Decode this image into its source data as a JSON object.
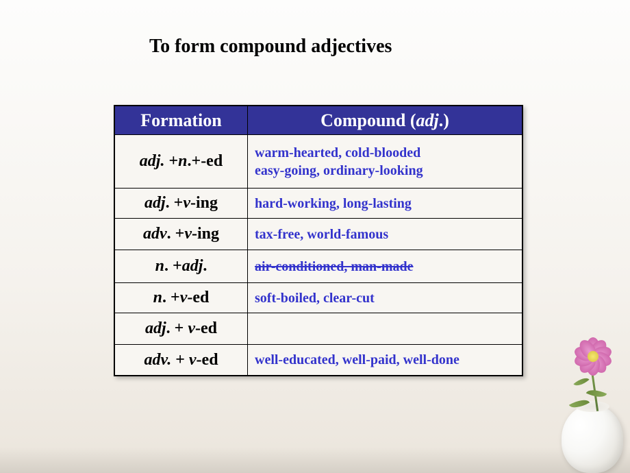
{
  "title": "To form compound adjectives",
  "table": {
    "header_bg": "#333398",
    "header_fg": "#ffffff",
    "border_color": "#000000",
    "compound_color": "#3333cc",
    "formation_color": "#000000",
    "headers": {
      "formation": "Formation",
      "compound_prefix": "Compound (",
      "compound_italic": "adj",
      "compound_suffix": ".)"
    },
    "rows": [
      {
        "formation_parts": [
          {
            "text": "adj.",
            "italic": true
          },
          {
            "text": " +",
            "italic": false
          },
          {
            "text": "n",
            "italic": true
          },
          {
            "text": ".+-ed",
            "italic": false
          }
        ],
        "compound_lines": [
          {
            "text": "warm-hearted, cold-blooded",
            "striked": false
          },
          {
            "text": "easy-going, ordinary-looking",
            "striked": false
          }
        ]
      },
      {
        "formation_parts": [
          {
            "text": "adj",
            "italic": true
          },
          {
            "text": ". +",
            "italic": false
          },
          {
            "text": "v",
            "italic": true
          },
          {
            "text": "-ing",
            "italic": false
          }
        ],
        "compound_lines": [
          {
            "text": "hard-working, long-lasting",
            "striked": false
          }
        ]
      },
      {
        "formation_parts": [
          {
            "text": "adv",
            "italic": true
          },
          {
            "text": ". +",
            "italic": false
          },
          {
            "text": "v",
            "italic": true
          },
          {
            "text": "-ing",
            "italic": false
          }
        ],
        "compound_lines": [
          {
            "text": "tax-free, world-famous",
            "striked": false
          }
        ]
      },
      {
        "formation_parts": [
          {
            "text": "n",
            "italic": true
          },
          {
            "text": ". +",
            "italic": false
          },
          {
            "text": "adj",
            "italic": true
          },
          {
            "text": ".",
            "italic": false
          }
        ],
        "compound_lines": [
          {
            "text": "air-conditioned, man-made",
            "striked": true
          }
        ]
      },
      {
        "formation_parts": [
          {
            "text": "n",
            "italic": true
          },
          {
            "text": ". +",
            "italic": false
          },
          {
            "text": "v",
            "italic": true
          },
          {
            "text": "-ed",
            "italic": false
          }
        ],
        "compound_lines": [
          {
            "text": "soft-boiled, clear-cut",
            "striked": false
          }
        ]
      },
      {
        "formation_parts": [
          {
            "text": "adj",
            "italic": true
          },
          {
            "text": ". + ",
            "italic": false
          },
          {
            "text": "v",
            "italic": true
          },
          {
            "text": "-ed",
            "italic": false
          }
        ],
        "compound_lines": []
      },
      {
        "formation_parts": [
          {
            "text": "adv.",
            "italic": true
          },
          {
            "text": " + ",
            "italic": false
          },
          {
            "text": "v",
            "italic": true
          },
          {
            "text": "-ed",
            "italic": false
          }
        ],
        "compound_lines": [
          {
            "text": "well-educated, well-paid, well-done",
            "striked": false
          }
        ]
      }
    ]
  },
  "flower": {
    "petal_color": "#d878b8",
    "center_color": "#f5e870",
    "leaf_color": "#7a9a4a",
    "vase_color": "#f8f8f6"
  }
}
